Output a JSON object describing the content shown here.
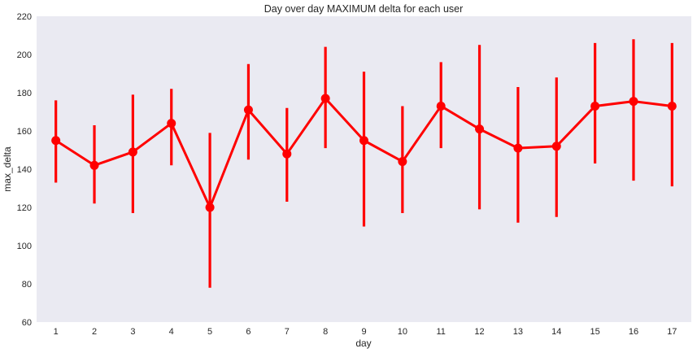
{
  "chart_data": {
    "type": "line",
    "title": "Day over day MAXIMUM delta for each user",
    "xlabel": "day",
    "ylabel": "max_delta",
    "categories": [
      "1",
      "2",
      "3",
      "4",
      "5",
      "6",
      "7",
      "8",
      "9",
      "10",
      "11",
      "12",
      "13",
      "14",
      "15",
      "16",
      "17"
    ],
    "ylim": [
      60,
      220
    ],
    "yticks": [
      60,
      80,
      100,
      120,
      140,
      160,
      180,
      200,
      220
    ],
    "grid": false,
    "series": [
      {
        "name": "",
        "color": "#ff0000",
        "values": [
          155,
          142,
          149,
          164,
          120,
          171,
          148,
          177,
          155,
          144,
          173,
          161,
          151,
          152,
          173,
          175.5,
          173
        ],
        "error_low": [
          133,
          122,
          117,
          142,
          78,
          145,
          123,
          151,
          110,
          117,
          151,
          119,
          112,
          115,
          143,
          134,
          131
        ],
        "error_high": [
          176,
          163,
          179,
          182,
          159,
          195,
          172,
          204,
          191,
          173,
          196,
          205,
          183,
          188,
          206,
          208,
          206
        ]
      }
    ],
    "background_color": "#eaeaf2"
  }
}
